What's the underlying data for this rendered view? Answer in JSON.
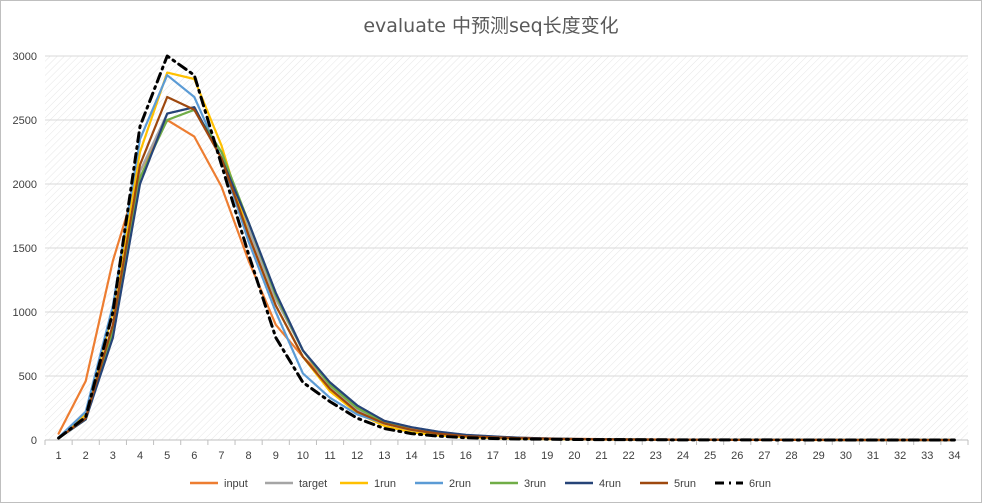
{
  "chart_data": {
    "type": "line",
    "title": "evaluate 中预测seq长度变化",
    "xlabel": "",
    "ylabel": "",
    "ylim": [
      0,
      3000
    ],
    "yticks": [
      0,
      500,
      1000,
      1500,
      2000,
      2500,
      3000
    ],
    "x": [
      1,
      2,
      3,
      4,
      5,
      6,
      7,
      8,
      9,
      10,
      11,
      12,
      13,
      14,
      15,
      16,
      17,
      18,
      19,
      20,
      21,
      22,
      23,
      24,
      25,
      26,
      27,
      28,
      29,
      30,
      31,
      32,
      33,
      34
    ],
    "grid": true,
    "legend_position": "bottom",
    "series": [
      {
        "name": "input",
        "color": "#ED7D31",
        "dash": "",
        "values": [
          50,
          460,
          1400,
          2100,
          2500,
          2370,
          1980,
          1400,
          900,
          650,
          450,
          260,
          150,
          90,
          55,
          35,
          25,
          18,
          12,
          9,
          7,
          5,
          4,
          3,
          2,
          2,
          1,
          1,
          1,
          1,
          0,
          0,
          0,
          0
        ]
      },
      {
        "name": "target",
        "color": "#A5A5A5",
        "dash": "",
        "values": [
          15,
          180,
          900,
          2100,
          2550,
          2600,
          2200,
          1650,
          1100,
          700,
          420,
          240,
          130,
          75,
          45,
          28,
          20,
          14,
          10,
          7,
          5,
          4,
          3,
          2,
          2,
          1,
          1,
          1,
          1,
          0,
          0,
          0,
          0,
          0
        ]
      },
      {
        "name": "1run",
        "color": "#FFC000",
        "dash": "",
        "values": [
          15,
          200,
          1000,
          2250,
          2870,
          2820,
          2300,
          1600,
          1050,
          650,
          380,
          210,
          110,
          60,
          35,
          22,
          15,
          10,
          7,
          5,
          4,
          3,
          2,
          2,
          1,
          1,
          1,
          1,
          0,
          0,
          0,
          0,
          0,
          0
        ]
      },
      {
        "name": "2run",
        "color": "#5B9BD5",
        "dash": "",
        "values": [
          20,
          220,
          1050,
          2350,
          2850,
          2680,
          2200,
          1550,
          1000,
          520,
          330,
          200,
          130,
          80,
          50,
          30,
          20,
          14,
          10,
          7,
          5,
          4,
          3,
          2,
          2,
          1,
          1,
          1,
          1,
          0,
          0,
          0,
          0,
          0
        ]
      },
      {
        "name": "3run",
        "color": "#70AD47",
        "dash": "",
        "values": [
          15,
          160,
          850,
          2050,
          2500,
          2580,
          2250,
          1700,
          1130,
          700,
          430,
          250,
          140,
          80,
          50,
          30,
          20,
          14,
          10,
          7,
          5,
          4,
          3,
          2,
          2,
          1,
          1,
          1,
          1,
          0,
          0,
          0,
          0,
          0
        ]
      },
      {
        "name": "4run",
        "color": "#264478",
        "dash": "",
        "values": [
          15,
          160,
          800,
          2000,
          2550,
          2600,
          2200,
          1700,
          1150,
          700,
          450,
          270,
          150,
          100,
          65,
          40,
          28,
          18,
          12,
          8,
          6,
          4,
          3,
          2,
          2,
          1,
          1,
          1,
          1,
          0,
          0,
          0,
          0,
          0
        ]
      },
      {
        "name": "5run",
        "color": "#9E480E",
        "dash": "",
        "values": [
          15,
          170,
          900,
          2150,
          2680,
          2580,
          2200,
          1600,
          1050,
          650,
          400,
          220,
          130,
          80,
          50,
          30,
          20,
          14,
          10,
          7,
          5,
          4,
          3,
          2,
          2,
          1,
          1,
          1,
          1,
          0,
          0,
          0,
          0,
          0
        ]
      },
      {
        "name": "6run",
        "color": "#000000",
        "dash": "9,5,2,5",
        "values": [
          15,
          180,
          1000,
          2450,
          3000,
          2850,
          2150,
          1450,
          800,
          450,
          300,
          170,
          90,
          50,
          30,
          18,
          12,
          8,
          6,
          4,
          3,
          2,
          2,
          1,
          1,
          1,
          1,
          0,
          0,
          0,
          0,
          0,
          0,
          0
        ]
      }
    ]
  }
}
